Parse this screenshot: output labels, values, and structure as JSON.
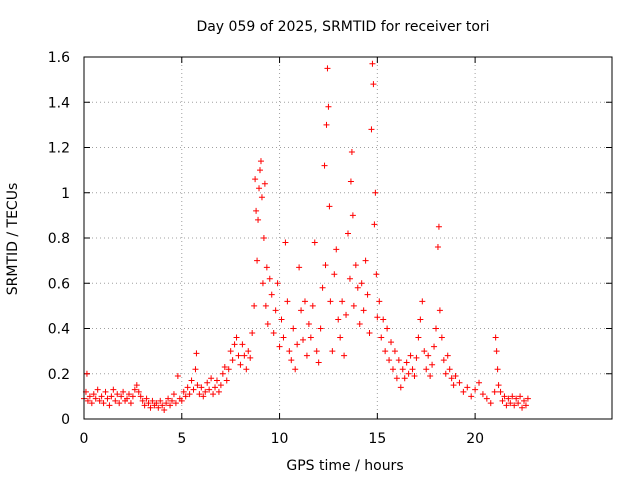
{
  "chart_data": {
    "type": "scatter",
    "title": "Day 059 of 2025, SRMTID for receiver tori",
    "xlabel": "GPS time / hours",
    "ylabel": "SRMTID / TECUs",
    "xlim": [
      0,
      27
    ],
    "ylim": [
      0,
      1.6
    ],
    "x_ticks": [
      0,
      5,
      10,
      15,
      20
    ],
    "x_tick_labels": [
      "0",
      "5",
      "10",
      "15",
      "20"
    ],
    "y_ticks": [
      0,
      0.2,
      0.4,
      0.6,
      0.8,
      1.0,
      1.2,
      1.4,
      1.6
    ],
    "y_tick_labels": [
      "0",
      "0.2",
      "0.4",
      "0.6",
      "0.8",
      "1",
      "1.2",
      "1.4",
      "1.6"
    ],
    "grid": true,
    "marker": "plus",
    "color": "#ff0000",
    "series": [
      {
        "name": "SRMTID",
        "points": [
          [
            0.0,
            0.09
          ],
          [
            0.1,
            0.12
          ],
          [
            0.15,
            0.2
          ],
          [
            0.2,
            0.08
          ],
          [
            0.3,
            0.1
          ],
          [
            0.4,
            0.07
          ],
          [
            0.5,
            0.11
          ],
          [
            0.6,
            0.09
          ],
          [
            0.7,
            0.13
          ],
          [
            0.8,
            0.08
          ],
          [
            0.9,
            0.1
          ],
          [
            1.0,
            0.07
          ],
          [
            1.1,
            0.12
          ],
          [
            1.2,
            0.09
          ],
          [
            1.3,
            0.06
          ],
          [
            1.4,
            0.1
          ],
          [
            1.5,
            0.13
          ],
          [
            1.6,
            0.08
          ],
          [
            1.7,
            0.11
          ],
          [
            1.8,
            0.07
          ],
          [
            1.9,
            0.1
          ],
          [
            2.0,
            0.12
          ],
          [
            2.1,
            0.08
          ],
          [
            2.2,
            0.09
          ],
          [
            2.3,
            0.11
          ],
          [
            2.4,
            0.07
          ],
          [
            2.5,
            0.1
          ],
          [
            2.6,
            0.13
          ],
          [
            2.7,
            0.15
          ],
          [
            2.8,
            0.12
          ],
          [
            2.9,
            0.1
          ],
          [
            3.0,
            0.08
          ],
          [
            3.1,
            0.06
          ],
          [
            3.2,
            0.09
          ],
          [
            3.3,
            0.07
          ],
          [
            3.4,
            0.05
          ],
          [
            3.5,
            0.08
          ],
          [
            3.6,
            0.06
          ],
          [
            3.7,
            0.07
          ],
          [
            3.8,
            0.05
          ],
          [
            3.9,
            0.08
          ],
          [
            4.0,
            0.06
          ],
          [
            4.1,
            0.04
          ],
          [
            4.2,
            0.07
          ],
          [
            4.3,
            0.09
          ],
          [
            4.4,
            0.06
          ],
          [
            4.5,
            0.08
          ],
          [
            4.6,
            0.11
          ],
          [
            4.7,
            0.07
          ],
          [
            4.8,
            0.19
          ],
          [
            4.9,
            0.09
          ],
          [
            5.0,
            0.08
          ],
          [
            5.1,
            0.12
          ],
          [
            5.2,
            0.1
          ],
          [
            5.3,
            0.14
          ],
          [
            5.4,
            0.11
          ],
          [
            5.5,
            0.17
          ],
          [
            5.6,
            0.13
          ],
          [
            5.7,
            0.22
          ],
          [
            5.75,
            0.29
          ],
          [
            5.8,
            0.15
          ],
          [
            5.9,
            0.11
          ],
          [
            6.0,
            0.14
          ],
          [
            6.1,
            0.1
          ],
          [
            6.2,
            0.12
          ],
          [
            6.3,
            0.16
          ],
          [
            6.4,
            0.13
          ],
          [
            6.5,
            0.18
          ],
          [
            6.6,
            0.11
          ],
          [
            6.7,
            0.14
          ],
          [
            6.8,
            0.17
          ],
          [
            6.9,
            0.12
          ],
          [
            7.0,
            0.15
          ],
          [
            7.1,
            0.2
          ],
          [
            7.2,
            0.23
          ],
          [
            7.3,
            0.17
          ],
          [
            7.4,
            0.22
          ],
          [
            7.5,
            0.3
          ],
          [
            7.6,
            0.26
          ],
          [
            7.7,
            0.33
          ],
          [
            7.8,
            0.36
          ],
          [
            7.9,
            0.28
          ],
          [
            8.0,
            0.24
          ],
          [
            8.1,
            0.33
          ],
          [
            8.2,
            0.28
          ],
          [
            8.3,
            0.22
          ],
          [
            8.4,
            0.3
          ],
          [
            8.5,
            0.27
          ],
          [
            8.6,
            0.38
          ],
          [
            8.7,
            0.5
          ],
          [
            8.75,
            1.06
          ],
          [
            8.8,
            0.92
          ],
          [
            8.85,
            0.7
          ],
          [
            8.9,
            0.88
          ],
          [
            8.95,
            1.02
          ],
          [
            9.0,
            1.1
          ],
          [
            9.05,
            1.14
          ],
          [
            9.1,
            0.98
          ],
          [
            9.15,
            0.6
          ],
          [
            9.2,
            0.8
          ],
          [
            9.25,
            1.04
          ],
          [
            9.3,
            0.5
          ],
          [
            9.35,
            0.67
          ],
          [
            9.4,
            0.42
          ],
          [
            9.5,
            0.62
          ],
          [
            9.6,
            0.55
          ],
          [
            9.7,
            0.38
          ],
          [
            9.8,
            0.48
          ],
          [
            9.9,
            0.6
          ],
          [
            10.0,
            0.32
          ],
          [
            10.1,
            0.44
          ],
          [
            10.2,
            0.36
          ],
          [
            10.3,
            0.78
          ],
          [
            10.4,
            0.52
          ],
          [
            10.5,
            0.3
          ],
          [
            10.6,
            0.26
          ],
          [
            10.7,
            0.4
          ],
          [
            10.8,
            0.22
          ],
          [
            10.9,
            0.33
          ],
          [
            11.0,
            0.67
          ],
          [
            11.1,
            0.48
          ],
          [
            11.2,
            0.35
          ],
          [
            11.3,
            0.52
          ],
          [
            11.4,
            0.28
          ],
          [
            11.5,
            0.42
          ],
          [
            11.6,
            0.36
          ],
          [
            11.7,
            0.5
          ],
          [
            11.8,
            0.78
          ],
          [
            11.9,
            0.3
          ],
          [
            12.0,
            0.25
          ],
          [
            12.1,
            0.4
          ],
          [
            12.2,
            0.58
          ],
          [
            12.3,
            1.12
          ],
          [
            12.35,
            0.68
          ],
          [
            12.4,
            1.3
          ],
          [
            12.45,
            1.55
          ],
          [
            12.5,
            1.38
          ],
          [
            12.55,
            0.94
          ],
          [
            12.6,
            0.52
          ],
          [
            12.7,
            0.3
          ],
          [
            12.8,
            0.64
          ],
          [
            12.9,
            0.75
          ],
          [
            13.0,
            0.44
          ],
          [
            13.1,
            0.36
          ],
          [
            13.2,
            0.52
          ],
          [
            13.3,
            0.28
          ],
          [
            13.4,
            0.46
          ],
          [
            13.5,
            0.82
          ],
          [
            13.6,
            0.62
          ],
          [
            13.65,
            1.05
          ],
          [
            13.7,
            1.18
          ],
          [
            13.75,
            0.9
          ],
          [
            13.8,
            0.5
          ],
          [
            13.9,
            0.68
          ],
          [
            14.0,
            0.58
          ],
          [
            14.1,
            0.42
          ],
          [
            14.2,
            0.6
          ],
          [
            14.3,
            0.48
          ],
          [
            14.4,
            0.7
          ],
          [
            14.5,
            0.55
          ],
          [
            14.6,
            0.38
          ],
          [
            14.7,
            1.28
          ],
          [
            14.75,
            1.57
          ],
          [
            14.8,
            1.48
          ],
          [
            14.85,
            0.86
          ],
          [
            14.9,
            1.0
          ],
          [
            14.95,
            0.64
          ],
          [
            15.0,
            0.45
          ],
          [
            15.1,
            0.52
          ],
          [
            15.2,
            0.36
          ],
          [
            15.3,
            0.44
          ],
          [
            15.4,
            0.3
          ],
          [
            15.5,
            0.4
          ],
          [
            15.6,
            0.26
          ],
          [
            15.7,
            0.34
          ],
          [
            15.8,
            0.22
          ],
          [
            15.9,
            0.3
          ],
          [
            16.0,
            0.18
          ],
          [
            16.1,
            0.26
          ],
          [
            16.2,
            0.14
          ],
          [
            16.3,
            0.22
          ],
          [
            16.4,
            0.18
          ],
          [
            16.5,
            0.25
          ],
          [
            16.6,
            0.2
          ],
          [
            16.7,
            0.28
          ],
          [
            16.8,
            0.22
          ],
          [
            16.9,
            0.19
          ],
          [
            17.0,
            0.27
          ],
          [
            17.1,
            0.36
          ],
          [
            17.2,
            0.44
          ],
          [
            17.3,
            0.52
          ],
          [
            17.4,
            0.3
          ],
          [
            17.5,
            0.22
          ],
          [
            17.6,
            0.28
          ],
          [
            17.7,
            0.19
          ],
          [
            17.8,
            0.24
          ],
          [
            17.9,
            0.32
          ],
          [
            18.0,
            0.4
          ],
          [
            18.1,
            0.76
          ],
          [
            18.15,
            0.85
          ],
          [
            18.2,
            0.48
          ],
          [
            18.3,
            0.36
          ],
          [
            18.4,
            0.26
          ],
          [
            18.5,
            0.2
          ],
          [
            18.6,
            0.28
          ],
          [
            18.7,
            0.22
          ],
          [
            18.8,
            0.18
          ],
          [
            18.9,
            0.15
          ],
          [
            19.0,
            0.19
          ],
          [
            19.2,
            0.16
          ],
          [
            19.4,
            0.12
          ],
          [
            19.6,
            0.14
          ],
          [
            19.8,
            0.1
          ],
          [
            20.0,
            0.13
          ],
          [
            20.2,
            0.16
          ],
          [
            20.4,
            0.11
          ],
          [
            20.6,
            0.09
          ],
          [
            20.8,
            0.07
          ],
          [
            21.0,
            0.12
          ],
          [
            21.05,
            0.36
          ],
          [
            21.1,
            0.3
          ],
          [
            21.15,
            0.22
          ],
          [
            21.2,
            0.15
          ],
          [
            21.3,
            0.12
          ],
          [
            21.4,
            0.08
          ],
          [
            21.5,
            0.1
          ],
          [
            21.6,
            0.06
          ],
          [
            21.7,
            0.09
          ],
          [
            21.8,
            0.07
          ],
          [
            21.9,
            0.1
          ],
          [
            22.0,
            0.06
          ],
          [
            22.1,
            0.09
          ],
          [
            22.2,
            0.07
          ],
          [
            22.3,
            0.1
          ],
          [
            22.4,
            0.05
          ],
          [
            22.5,
            0.08
          ],
          [
            22.6,
            0.06
          ],
          [
            22.7,
            0.09
          ]
        ]
      }
    ]
  }
}
